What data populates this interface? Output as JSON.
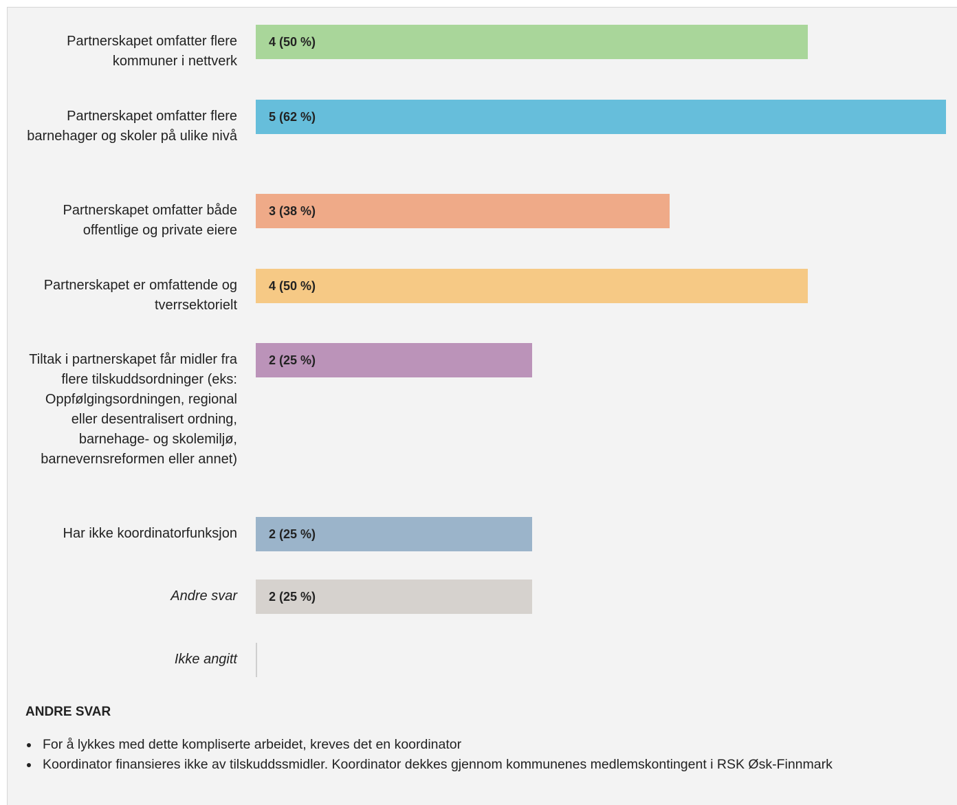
{
  "chart_data": {
    "type": "bar",
    "orientation": "horizontal",
    "title": "",
    "xlabel": "",
    "ylabel": "",
    "total_respondents": 8,
    "xlim": [
      0,
      5
    ],
    "grid": false,
    "legend": "none",
    "categories": [
      {
        "label": "Partnerskapet omfatter flere kommuner i nettverk",
        "value": 4,
        "percent": 50,
        "display": "4 (50 %)",
        "color": "#a9d69a",
        "italic": false
      },
      {
        "label": "Partnerskapet omfatter flere barnehager og skoler på ulike nivå",
        "value": 5,
        "percent": 62,
        "display": "5 (62 %)",
        "color": "#66bedb",
        "italic": false
      },
      {
        "label": "Partnerskapet omfatter både offentlige og private eiere",
        "value": 3,
        "percent": 38,
        "display": "3 (38 %)",
        "color": "#efaa88",
        "italic": false
      },
      {
        "label": "Partnerskapet er omfattende og tverrsektorielt",
        "value": 4,
        "percent": 50,
        "display": "4 (50 %)",
        "color": "#f6c985",
        "italic": false
      },
      {
        "label": "Tiltak i partnerskapet får midler fra flere tilskuddsordninger (eks: Oppfølgingsordningen, regional eller desentralisert ordning, barnehage- og skolemiljø, barnevernsreformen eller annet)",
        "value": 2,
        "percent": 25,
        "display": "2 (25 %)",
        "color": "#bb93b9",
        "italic": false
      },
      {
        "label": "Har ikke koordinatorfunksjon",
        "value": 2,
        "percent": 25,
        "display": "2 (25 %)",
        "color": "#9bb4ca",
        "italic": false
      },
      {
        "label": "Andre svar",
        "value": 2,
        "percent": 25,
        "display": "2 (25 %)",
        "color": "#d6d2ce",
        "italic": true
      },
      {
        "label": "Ikke angitt",
        "value": 0,
        "percent": 0,
        "display": "",
        "color": "#cfcfcf",
        "italic": true
      }
    ]
  },
  "other_answers": {
    "heading": "ANDRE SVAR",
    "items": [
      "For å lykkes med dette kompliserte arbeidet, kreves det en koordinator",
      "Koordinator finansieres ikke av tilskuddssmidler. Koordinator dekkes gjennom kommunenes medlemskontingent i RSK Øsk-Finnmark"
    ]
  }
}
